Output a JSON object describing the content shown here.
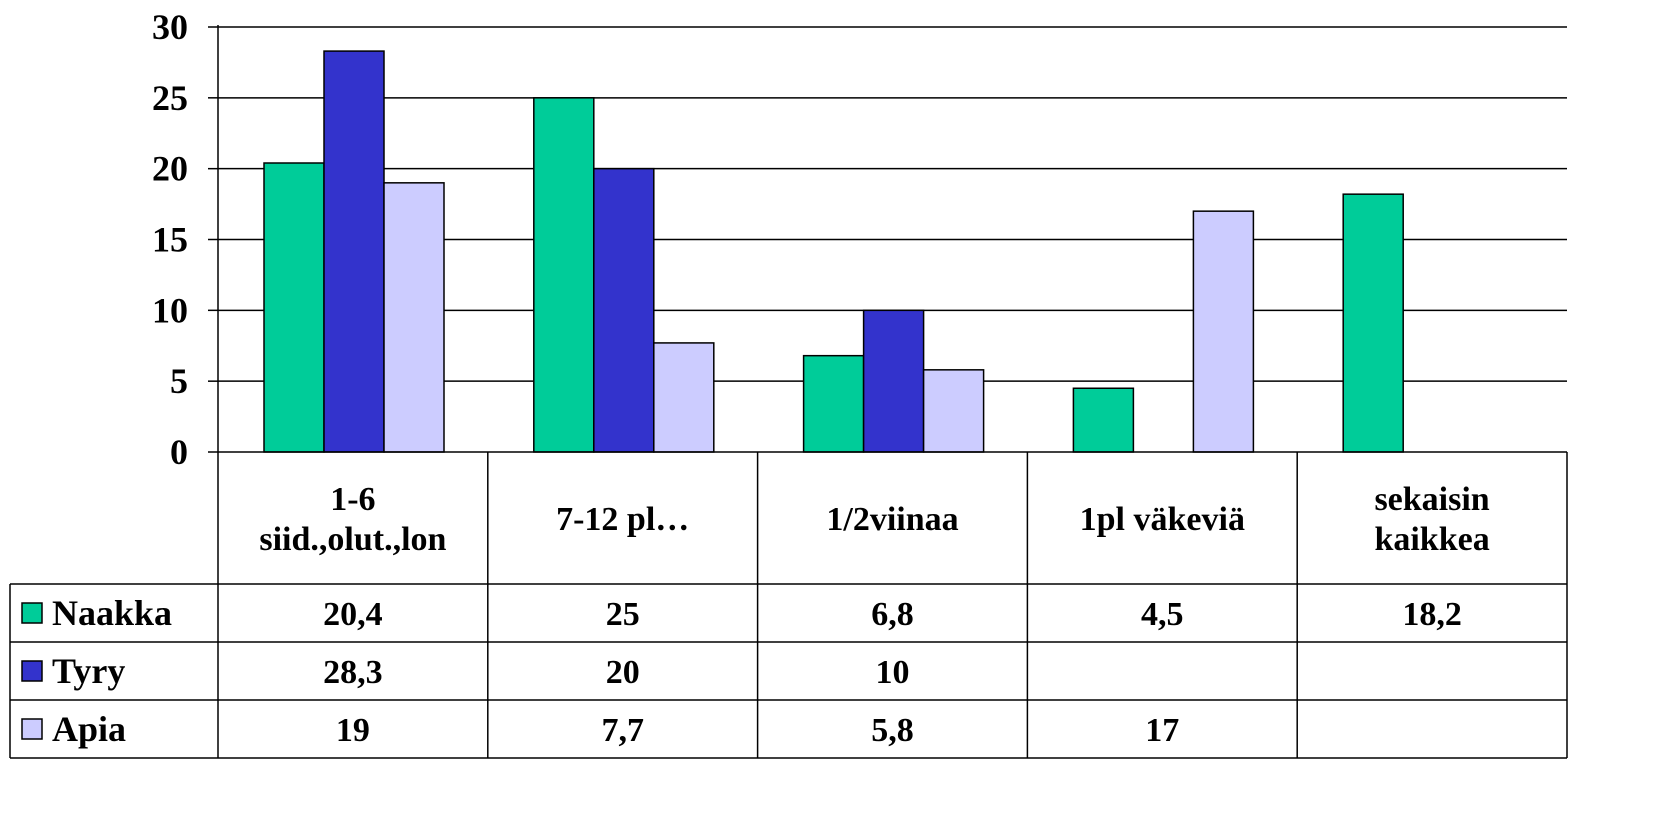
{
  "chart_data": {
    "type": "bar",
    "categories": [
      [
        "1-6",
        "siid.,olut.,lon"
      ],
      [
        "7-12 pl…"
      ],
      [
        "1/2viinaa"
      ],
      [
        "1pl väkeviä"
      ],
      [
        "sekaisin",
        "kaikkea"
      ]
    ],
    "series": [
      {
        "name": "Naakka",
        "color": "#00CC99",
        "values": [
          20.4,
          25,
          6.8,
          4.5,
          18.2
        ],
        "labels": [
          "20,4",
          "25",
          "6,8",
          "4,5",
          "18,2"
        ]
      },
      {
        "name": "Tyry",
        "color": "#3333CC",
        "values": [
          28.3,
          20,
          10,
          null,
          null
        ],
        "labels": [
          "28,3",
          "20",
          "10",
          "",
          ""
        ]
      },
      {
        "name": "Apia",
        "color": "#CCCCFF",
        "values": [
          19,
          7.7,
          5.8,
          17,
          null
        ],
        "labels": [
          "19",
          "7,7",
          "5,8",
          "17",
          ""
        ]
      }
    ],
    "ylim": [
      0,
      30
    ],
    "yticks": [
      "0",
      "5",
      "10",
      "15",
      "20",
      "25",
      "30"
    ],
    "grid": true,
    "legend": "data-table-left"
  }
}
